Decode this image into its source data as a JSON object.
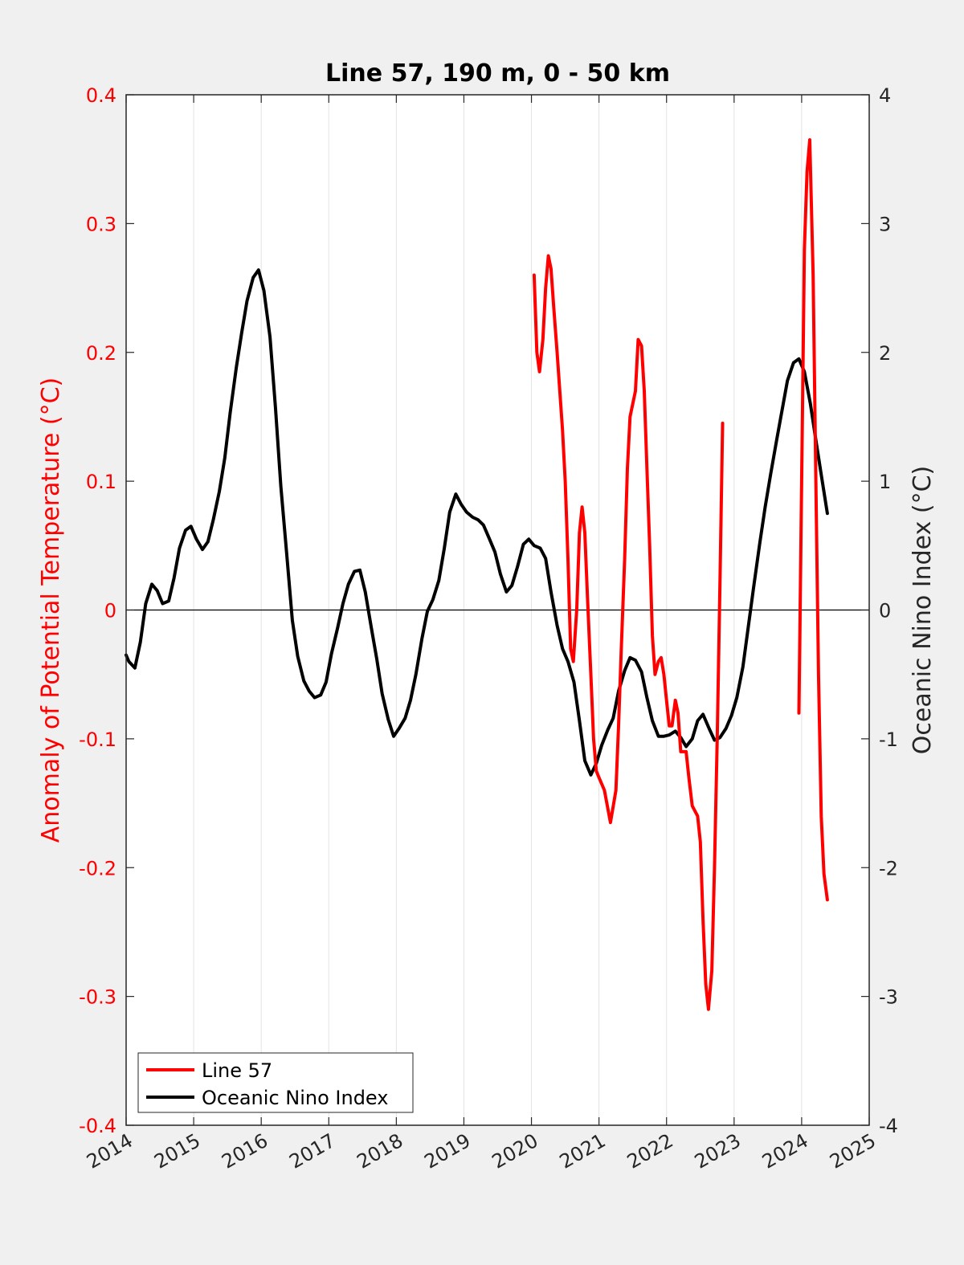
{
  "chart_data": {
    "type": "line",
    "title": "Line 57, 190 m, 0 - 50 km",
    "xlabel": "",
    "ylabel": "Anomaly of Potential Temperature (°C)",
    "y2label": "Oceanic Nino Index (°C)",
    "xlim": [
      2014,
      2025
    ],
    "ylim": [
      -0.4,
      0.4
    ],
    "y2lim": [
      -4,
      4
    ],
    "xticks": [
      "2014",
      "2015",
      "2016",
      "2017",
      "2018",
      "2019",
      "2020",
      "2021",
      "2022",
      "2023",
      "2024",
      "2025"
    ],
    "yticks": [
      "-0.4",
      "-0.3",
      "-0.2",
      "-0.1",
      "0",
      "0.1",
      "0.2",
      "0.3",
      "0.4"
    ],
    "y2ticks": [
      "-4",
      "-3",
      "-2",
      "-1",
      "0",
      "1",
      "2",
      "3",
      "4"
    ],
    "grid": "vertical",
    "legend_position": "bottom-left",
    "colors": {
      "line57": "#ff0000",
      "oni": "#000000",
      "left_axis": "#ff0000",
      "right_axis": "#000000"
    },
    "series": [
      {
        "name": "Line 57",
        "axis": "left",
        "color": "#ff0000",
        "segments": [
          [
            [
              2020.04,
              0.26
            ],
            [
              2020.08,
              0.2
            ],
            [
              2020.12,
              0.185
            ],
            [
              2020.17,
              0.21
            ],
            [
              2020.21,
              0.25
            ],
            [
              2020.25,
              0.275
            ],
            [
              2020.29,
              0.265
            ],
            [
              2020.33,
              0.235
            ],
            [
              2020.38,
              0.2
            ],
            [
              2020.46,
              0.14
            ],
            [
              2020.5,
              0.1
            ],
            [
              2020.54,
              0.04
            ],
            [
              2020.58,
              -0.03
            ],
            [
              2020.62,
              -0.04
            ],
            [
              2020.67,
              0.0
            ],
            [
              2020.71,
              0.06
            ],
            [
              2020.75,
              0.08
            ],
            [
              2020.79,
              0.06
            ],
            [
              2020.83,
              0.01
            ],
            [
              2020.88,
              -0.05
            ],
            [
              2020.92,
              -0.1
            ],
            [
              2020.96,
              -0.125
            ],
            [
              2021.0,
              -0.13
            ],
            [
              2021.08,
              -0.14
            ],
            [
              2021.17,
              -0.165
            ],
            [
              2021.25,
              -0.14
            ],
            [
              2021.29,
              -0.09
            ],
            [
              2021.33,
              -0.03
            ],
            [
              2021.38,
              0.04
            ],
            [
              2021.42,
              0.11
            ],
            [
              2021.46,
              0.15
            ],
            [
              2021.54,
              0.17
            ],
            [
              2021.58,
              0.21
            ],
            [
              2021.63,
              0.205
            ],
            [
              2021.67,
              0.17
            ],
            [
              2021.71,
              0.11
            ],
            [
              2021.75,
              0.05
            ],
            [
              2021.79,
              -0.02
            ],
            [
              2021.83,
              -0.05
            ],
            [
              2021.88,
              -0.04
            ],
            [
              2021.92,
              -0.037
            ],
            [
              2021.96,
              -0.05
            ],
            [
              2022.0,
              -0.07
            ],
            [
              2022.04,
              -0.09
            ],
            [
              2022.08,
              -0.09
            ],
            [
              2022.13,
              -0.07
            ],
            [
              2022.17,
              -0.08
            ],
            [
              2022.21,
              -0.11
            ],
            [
              2022.29,
              -0.11
            ],
            [
              2022.33,
              -0.13
            ],
            [
              2022.38,
              -0.152
            ],
            [
              2022.46,
              -0.16
            ],
            [
              2022.5,
              -0.18
            ],
            [
              2022.54,
              -0.24
            ],
            [
              2022.58,
              -0.29
            ],
            [
              2022.62,
              -0.31
            ],
            [
              2022.67,
              -0.28
            ],
            [
              2022.71,
              -0.2
            ],
            [
              2022.75,
              -0.1
            ],
            [
              2022.79,
              0.02
            ],
            [
              2022.83,
              0.145
            ]
          ],
          [
            [
              2023.96,
              -0.08
            ],
            [
              2024.0,
              0.1
            ],
            [
              2024.04,
              0.28
            ],
            [
              2024.08,
              0.34
            ],
            [
              2024.12,
              0.365
            ],
            [
              2024.17,
              0.26
            ],
            [
              2024.21,
              0.1
            ],
            [
              2024.25,
              -0.05
            ],
            [
              2024.29,
              -0.16
            ],
            [
              2024.33,
              -0.205
            ],
            [
              2024.38,
              -0.225
            ]
          ]
        ]
      },
      {
        "name": "Oceanic Nino Index",
        "axis": "right",
        "color": "#000000",
        "segments": [
          [
            [
              2014.0,
              -0.35
            ],
            [
              2014.04,
              -0.4
            ],
            [
              2014.13,
              -0.45
            ],
            [
              2014.21,
              -0.25
            ],
            [
              2014.29,
              0.05
            ],
            [
              2014.38,
              0.2
            ],
            [
              2014.46,
              0.15
            ],
            [
              2014.54,
              0.05
            ],
            [
              2014.63,
              0.07
            ],
            [
              2014.71,
              0.25
            ],
            [
              2014.79,
              0.48
            ],
            [
              2014.88,
              0.62
            ],
            [
              2014.96,
              0.65
            ],
            [
              2015.04,
              0.55
            ],
            [
              2015.13,
              0.47
            ],
            [
              2015.21,
              0.53
            ],
            [
              2015.29,
              0.7
            ],
            [
              2015.38,
              0.92
            ],
            [
              2015.46,
              1.18
            ],
            [
              2015.54,
              1.53
            ],
            [
              2015.63,
              1.88
            ],
            [
              2015.71,
              2.15
            ],
            [
              2015.79,
              2.4
            ],
            [
              2015.88,
              2.58
            ],
            [
              2015.96,
              2.64
            ],
            [
              2016.04,
              2.48
            ],
            [
              2016.13,
              2.12
            ],
            [
              2016.21,
              1.58
            ],
            [
              2016.29,
              0.96
            ],
            [
              2016.38,
              0.42
            ],
            [
              2016.46,
              -0.08
            ],
            [
              2016.54,
              -0.36
            ],
            [
              2016.63,
              -0.55
            ],
            [
              2016.71,
              -0.63
            ],
            [
              2016.79,
              -0.68
            ],
            [
              2016.88,
              -0.66
            ],
            [
              2016.96,
              -0.56
            ],
            [
              2017.04,
              -0.34
            ],
            [
              2017.13,
              -0.14
            ],
            [
              2017.21,
              0.05
            ],
            [
              2017.29,
              0.2
            ],
            [
              2017.38,
              0.3
            ],
            [
              2017.46,
              0.31
            ],
            [
              2017.54,
              0.14
            ],
            [
              2017.63,
              -0.14
            ],
            [
              2017.71,
              -0.38
            ],
            [
              2017.79,
              -0.65
            ],
            [
              2017.88,
              -0.85
            ],
            [
              2017.96,
              -0.98
            ],
            [
              2018.04,
              -0.92
            ],
            [
              2018.13,
              -0.84
            ],
            [
              2018.21,
              -0.7
            ],
            [
              2018.29,
              -0.5
            ],
            [
              2018.38,
              -0.22
            ],
            [
              2018.46,
              -0.01
            ],
            [
              2018.54,
              0.08
            ],
            [
              2018.63,
              0.23
            ],
            [
              2018.71,
              0.48
            ],
            [
              2018.79,
              0.76
            ],
            [
              2018.88,
              0.9
            ],
            [
              2018.96,
              0.82
            ],
            [
              2019.04,
              0.76
            ],
            [
              2019.13,
              0.72
            ],
            [
              2019.21,
              0.7
            ],
            [
              2019.29,
              0.66
            ],
            [
              2019.38,
              0.55
            ],
            [
              2019.46,
              0.45
            ],
            [
              2019.54,
              0.28
            ],
            [
              2019.63,
              0.14
            ],
            [
              2019.71,
              0.19
            ],
            [
              2019.79,
              0.33
            ],
            [
              2019.88,
              0.51
            ],
            [
              2019.96,
              0.55
            ],
            [
              2020.04,
              0.5
            ],
            [
              2020.13,
              0.48
            ],
            [
              2020.21,
              0.4
            ],
            [
              2020.29,
              0.14
            ],
            [
              2020.38,
              -0.12
            ],
            [
              2020.46,
              -0.3
            ],
            [
              2020.54,
              -0.4
            ],
            [
              2020.63,
              -0.56
            ],
            [
              2020.71,
              -0.86
            ],
            [
              2020.79,
              -1.17
            ],
            [
              2020.88,
              -1.28
            ],
            [
              2020.96,
              -1.19
            ],
            [
              2021.04,
              -1.05
            ],
            [
              2021.13,
              -0.93
            ],
            [
              2021.21,
              -0.84
            ],
            [
              2021.29,
              -0.63
            ],
            [
              2021.38,
              -0.47
            ],
            [
              2021.46,
              -0.37
            ],
            [
              2021.54,
              -0.39
            ],
            [
              2021.63,
              -0.48
            ],
            [
              2021.71,
              -0.68
            ],
            [
              2021.79,
              -0.86
            ],
            [
              2021.88,
              -0.98
            ],
            [
              2021.96,
              -0.98
            ],
            [
              2022.04,
              -0.97
            ],
            [
              2022.13,
              -0.94
            ],
            [
              2022.21,
              -0.99
            ],
            [
              2022.29,
              -1.06
            ],
            [
              2022.38,
              -1.0
            ],
            [
              2022.46,
              -0.86
            ],
            [
              2022.54,
              -0.81
            ],
            [
              2022.63,
              -0.92
            ],
            [
              2022.71,
              -1.01
            ],
            [
              2022.79,
              -0.99
            ],
            [
              2022.88,
              -0.92
            ],
            [
              2022.96,
              -0.82
            ],
            [
              2023.04,
              -0.68
            ],
            [
              2023.13,
              -0.44
            ],
            [
              2023.21,
              -0.13
            ],
            [
              2023.29,
              0.18
            ],
            [
              2023.38,
              0.52
            ],
            [
              2023.46,
              0.8
            ],
            [
              2023.54,
              1.05
            ],
            [
              2023.63,
              1.32
            ],
            [
              2023.71,
              1.55
            ],
            [
              2023.79,
              1.78
            ],
            [
              2023.88,
              1.92
            ],
            [
              2023.96,
              1.95
            ],
            [
              2024.04,
              1.85
            ],
            [
              2024.13,
              1.6
            ],
            [
              2024.21,
              1.32
            ],
            [
              2024.29,
              1.05
            ],
            [
              2024.38,
              0.75
            ]
          ]
        ]
      }
    ]
  }
}
